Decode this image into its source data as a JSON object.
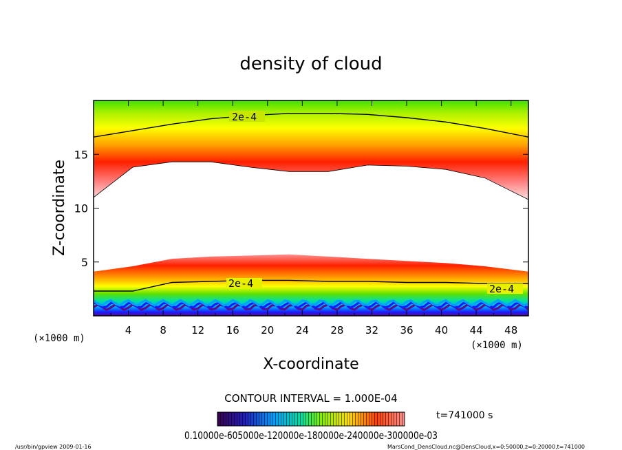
{
  "chart_data": {
    "type": "heatmap",
    "title": "density of cloud",
    "xlabel": "X-coordinate",
    "ylabel": "Z-coordinate",
    "x_unit_label": "(×1000 m)",
    "z_unit_label": "(×1000 m)",
    "xlim": [
      0,
      50
    ],
    "ylim": [
      0,
      20
    ],
    "x_ticks": [
      "4",
      "8",
      "12",
      "16",
      "20",
      "24",
      "28",
      "32",
      "36",
      "40",
      "44",
      "48"
    ],
    "y_ticks": [
      "5",
      "10",
      "15"
    ],
    "contour_interval_text": "CONTOUR INTERVAL = 1.000E-04",
    "time_text": "t=741000 s",
    "colorbar_labels_text": "0.10000e-605000e-120000e-180000e-240000e-300000e-03",
    "contour_labels": [
      "2e-4",
      "2e-4",
      "2e-4"
    ],
    "colorscale": [
      "#5a0a8c",
      "#1a1aff",
      "#00a0ff",
      "#00e0a0",
      "#40e000",
      "#c0f000",
      "#ffff00",
      "#ffa000",
      "#ff2000",
      "#ffc8c8"
    ],
    "upper_cloud_top_z": [
      16.6,
      17.2,
      17.8,
      18.3,
      18.6,
      18.8,
      18.8,
      18.7,
      18.4,
      18.0,
      17.4,
      16.6
    ],
    "upper_cloud_bottom_z": [
      11.0,
      13.8,
      14.3,
      14.3,
      13.8,
      13.4,
      13.4,
      14.0,
      13.9,
      13.6,
      12.8,
      10.8
    ],
    "lower_cloud_top_z": [
      4.1,
      4.6,
      5.3,
      5.5,
      5.6,
      5.7,
      5.5,
      5.3,
      5.1,
      4.9,
      4.6,
      4.1
    ],
    "lower_contour_2e4_z": [
      2.3,
      2.3,
      3.1,
      3.2,
      3.3,
      3.3,
      3.2,
      3.2,
      3.1,
      3.1,
      3.0,
      3.0
    ],
    "profile_x": [
      0,
      4.5,
      9,
      13.5,
      18,
      22.5,
      27,
      31.5,
      36,
      40.5,
      45,
      50
    ]
  },
  "footer": {
    "left": "/usr/bin/gpview   2009-01-16",
    "right": "MarsCond_DensCloud.nc@DensCloud,x=0:50000,z=0:20000,t=741000"
  }
}
